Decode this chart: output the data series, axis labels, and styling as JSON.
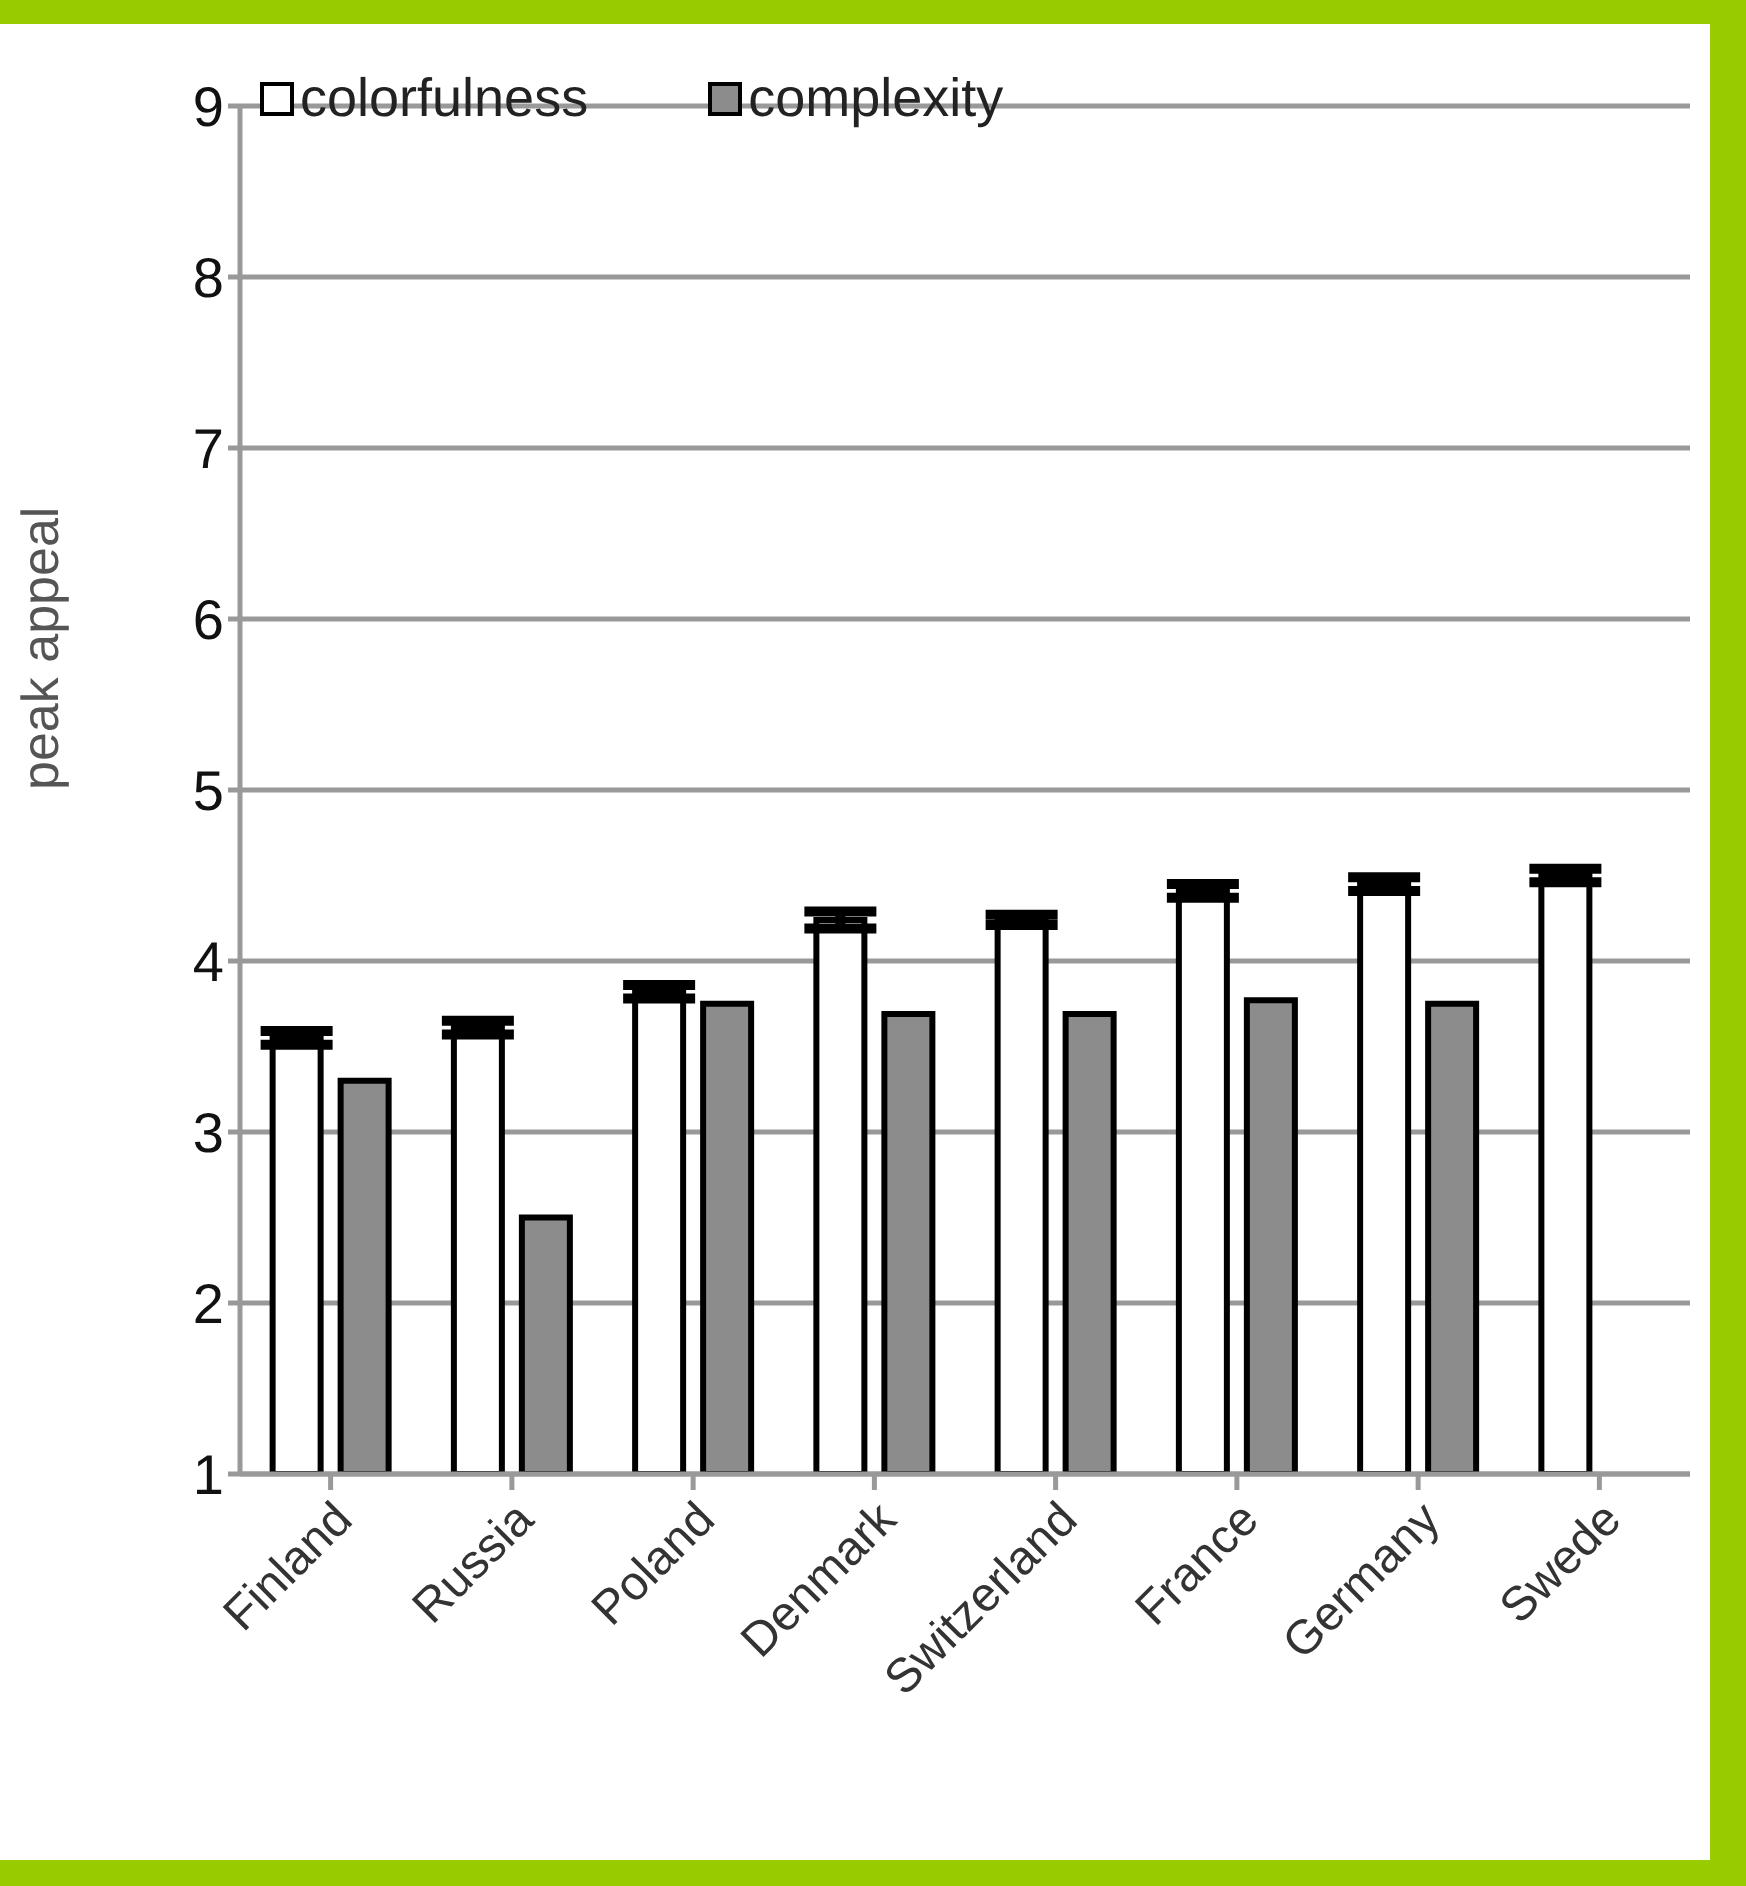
{
  "chart_data": {
    "type": "bar",
    "ylabel": "peak appeal",
    "categories": [
      "Finland",
      "Russia",
      "Poland",
      "Denmark",
      "Switzerland",
      "France",
      "Germany",
      "Swede"
    ],
    "series": [
      {
        "name": "colorfulness",
        "color": "#ffffff",
        "values": [
          3.55,
          3.61,
          3.82,
          4.24,
          4.24,
          4.41,
          4.45,
          4.5
        ],
        "errors": [
          0.04,
          0.04,
          0.04,
          0.05,
          0.03,
          0.04,
          0.04,
          0.04
        ]
      },
      {
        "name": "complexity",
        "color": "#8c8c8c",
        "values": [
          3.3,
          2.5,
          3.75,
          3.69,
          3.69,
          3.77,
          3.75,
          null
        ]
      }
    ],
    "ylim": [
      1,
      9
    ],
    "yticks": [
      1,
      2,
      3,
      4,
      5,
      6,
      7,
      8,
      9
    ],
    "grid": "y",
    "legend": "top"
  }
}
